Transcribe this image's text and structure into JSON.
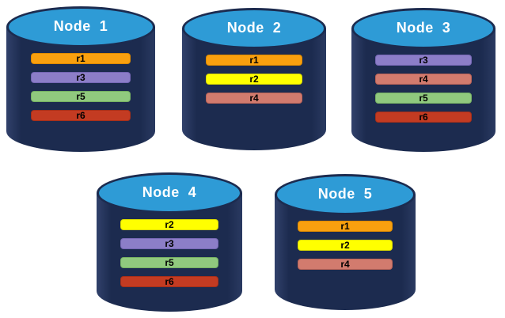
{
  "palette": {
    "background": "#FFFFFF",
    "cylinder_body": "#1C2B4F",
    "cylinder_top": "#2E9BD6",
    "node_label_color": "#FFFFFF",
    "bar_text_color": "#000000"
  },
  "replica_styles": {
    "r1": {
      "fill": "#F9A00F",
      "border": "#DE8A00"
    },
    "r2": {
      "fill": "#FFFF00",
      "border": "#D9D900"
    },
    "r3": {
      "fill": "#8C7EC8",
      "border": "#7667B5"
    },
    "r4": {
      "fill": "#D27B6E",
      "border": "#BB6357"
    },
    "r5": {
      "fill": "#90C97E",
      "border": "#76B163"
    },
    "r6": {
      "fill": "#C33B22",
      "border": "#A52F1A"
    }
  },
  "nodes": [
    {
      "id": "node-1",
      "label": "Node  1",
      "replicas": [
        "r1",
        "r3",
        "r5",
        "r6"
      ]
    },
    {
      "id": "node-2",
      "label": "Node  2",
      "replicas": [
        "r1",
        "r2",
        "r4"
      ]
    },
    {
      "id": "node-3",
      "label": "Node  3",
      "replicas": [
        "r3",
        "r4",
        "r5",
        "r6"
      ]
    },
    {
      "id": "node-4",
      "label": "Node  4",
      "replicas": [
        "r2",
        "r3",
        "r5",
        "r6"
      ]
    },
    {
      "id": "node-5",
      "label": "Node  5",
      "replicas": [
        "r1",
        "r2",
        "r4"
      ]
    }
  ]
}
